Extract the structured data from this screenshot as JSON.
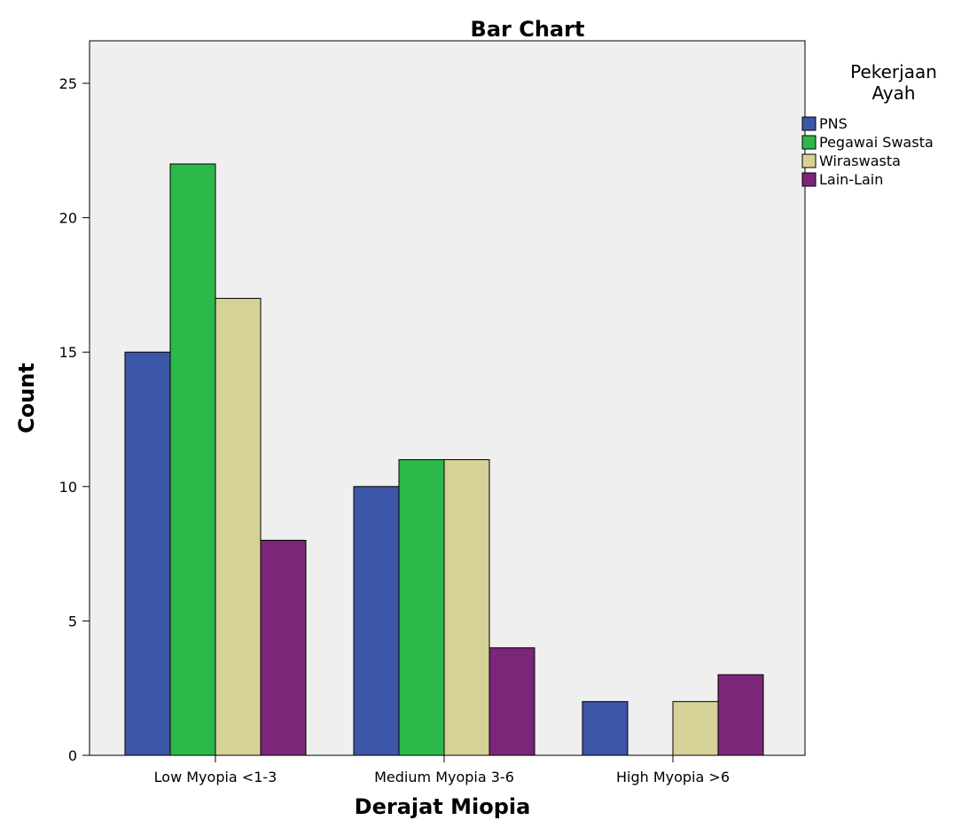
{
  "chart_data": {
    "type": "bar",
    "title": "Bar Chart",
    "xlabel": "Derajat Miopia",
    "ylabel": "Count",
    "categories": [
      "Low Myopia <1-3",
      "Medium Myopia 3-6",
      "High Myopia >6"
    ],
    "series": [
      {
        "name": "PNS",
        "values": [
          15,
          10,
          2
        ],
        "color": "#3c56a8"
      },
      {
        "name": "Pegawai Swasta",
        "values": [
          22,
          11,
          0
        ],
        "color": "#2db84a"
      },
      {
        "name": "Wiraswasta",
        "values": [
          17,
          11,
          2
        ],
        "color": "#d6d196"
      },
      {
        "name": "Lain-Lain",
        "values": [
          8,
          4,
          3
        ],
        "color": "#7b2678"
      }
    ],
    "ylim": [
      0,
      25
    ],
    "yticks": [
      "0",
      "5",
      "10",
      "15",
      "20",
      "25"
    ],
    "legend": {
      "title_line1": "Pekerjaan",
      "title_line2": "Ayah",
      "position": "right"
    },
    "grid": false,
    "plot_background": "#efefef"
  }
}
